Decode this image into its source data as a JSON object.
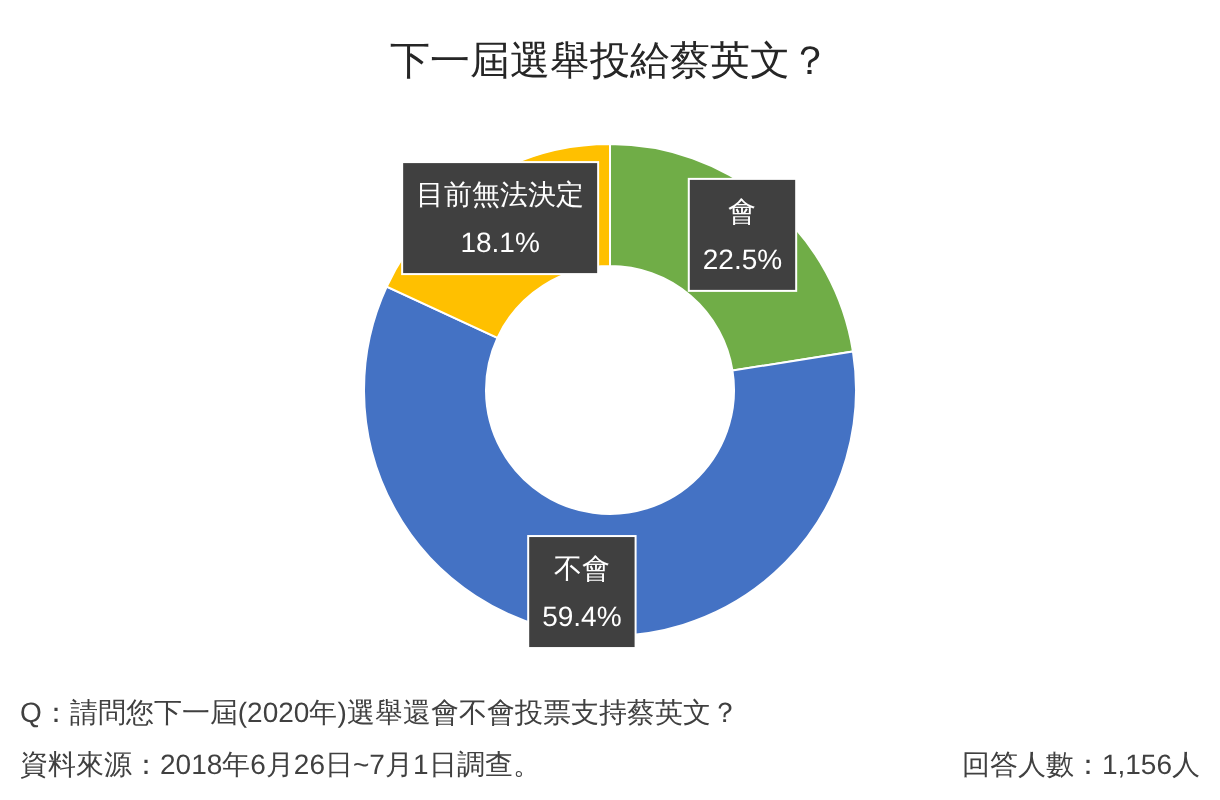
{
  "chart_data": {
    "type": "donut",
    "title": "下一屆選舉投給蔡英文？",
    "categories": [
      "會",
      "不會",
      "目前無法決定"
    ],
    "values": [
      22.5,
      59.4,
      18.1
    ],
    "colors": [
      "#70ad47",
      "#4472c4",
      "#ffc000"
    ],
    "value_labels": [
      "22.5%",
      "59.4%",
      "18.1%"
    ],
    "legend": false,
    "annotations": [
      "Q：請問您下一屆(2020年)選舉還會不會投票支持蔡英文？",
      "資料來源：2018年6月26日~7月1日調查。",
      "回答人數：1,156人"
    ]
  }
}
